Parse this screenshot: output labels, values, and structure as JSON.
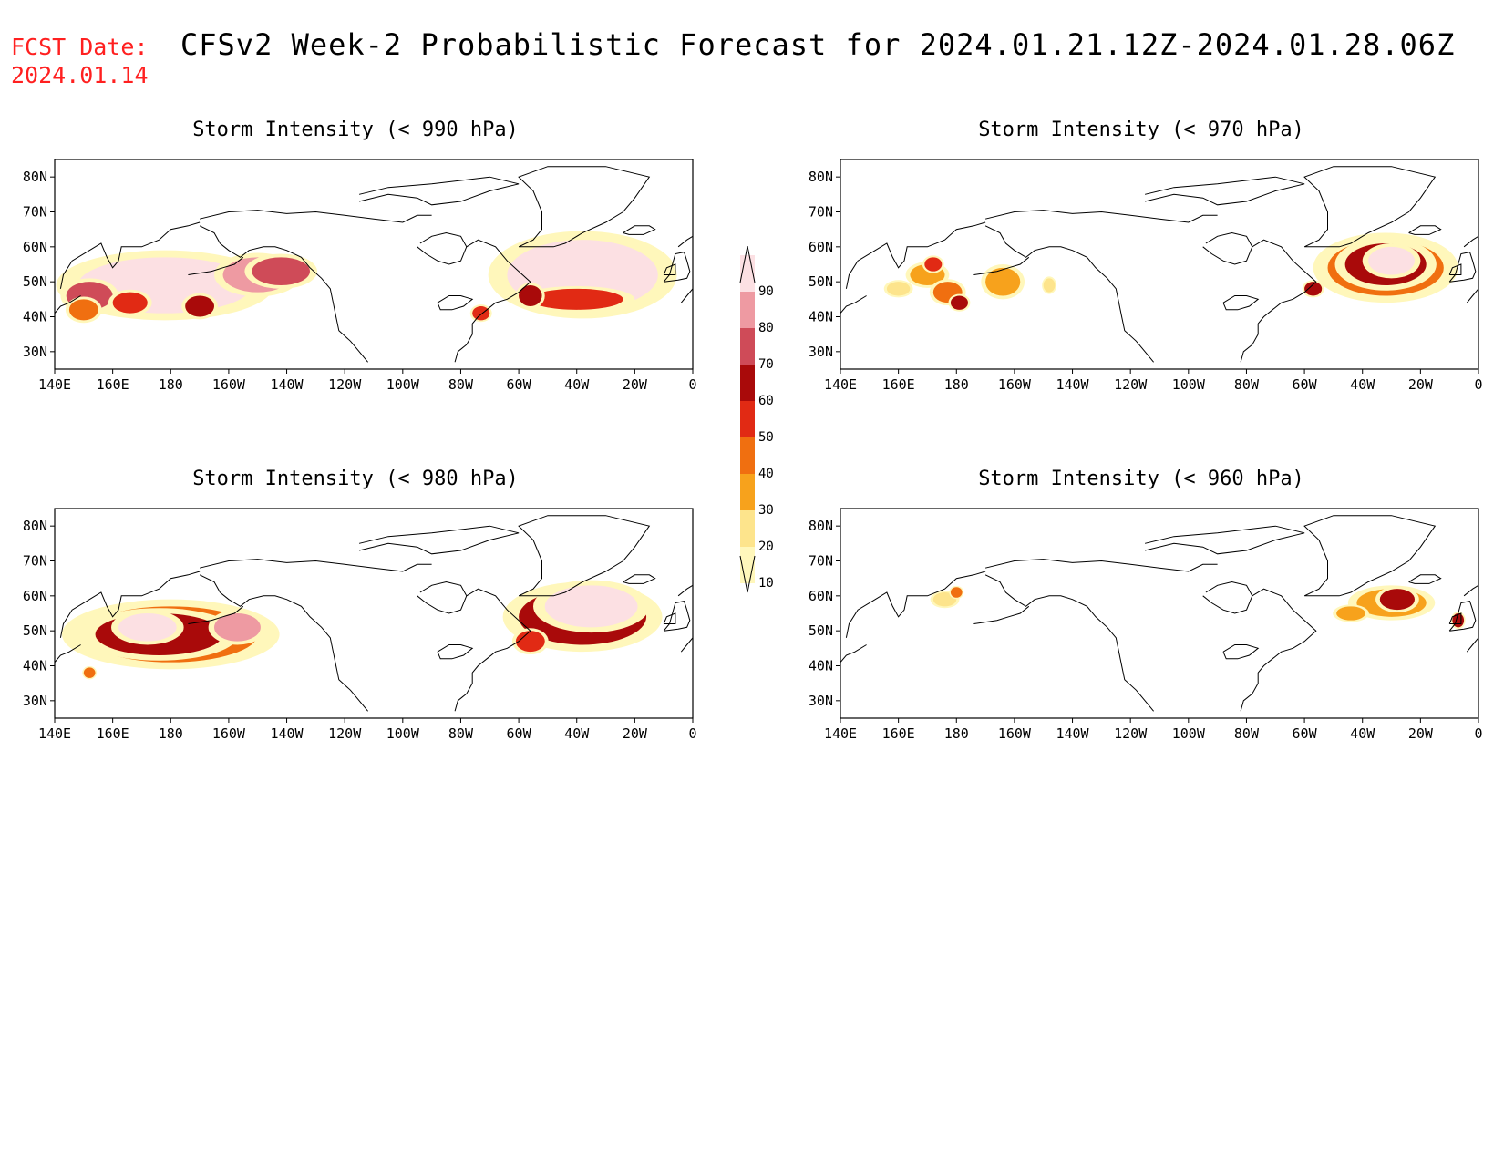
{
  "header": {
    "fcst_label": "FCST Date:",
    "fcst_date": "2024.01.14",
    "title": "CFSv2 Week-2 Probabilistic Forecast for 2024.01.21.12Z-2024.01.28.06Z"
  },
  "axes": {
    "lat_labels": [
      "80N",
      "70N",
      "60N",
      "50N",
      "40N",
      "30N"
    ],
    "lat_values": [
      80,
      70,
      60,
      50,
      40,
      30
    ],
    "lon_labels": [
      "140E",
      "160E",
      "180",
      "160W",
      "140W",
      "120W",
      "100W",
      "80W",
      "60W",
      "40W",
      "20W",
      "0"
    ],
    "lon_values": [
      140,
      160,
      180,
      200,
      220,
      240,
      260,
      280,
      300,
      320,
      340,
      360
    ],
    "lat_range": [
      25,
      85
    ],
    "lon_range": [
      140,
      360
    ]
  },
  "colorbar": {
    "levels": [
      "10",
      "20",
      "30",
      "40",
      "50",
      "60",
      "70",
      "80",
      "90"
    ],
    "colors": [
      "#fff7bb",
      "#fde48c",
      "#f7a21c",
      "#f06f10",
      "#e12a14",
      "#a90a0a",
      "#cf4b58",
      "#ee9aa2",
      "#fce0e3"
    ]
  },
  "panels": [
    {
      "id": "p990",
      "title": "Storm Intensity (< 990 hPa)",
      "blobs": [
        {
          "lon": 178,
          "lat": 49,
          "rx": 30,
          "ry": 8,
          "level": 8
        },
        {
          "lon": 210,
          "lat": 52,
          "rx": 12,
          "ry": 5,
          "level": 7
        },
        {
          "lon": 152,
          "lat": 46,
          "rx": 8,
          "ry": 4,
          "level": 6
        },
        {
          "lon": 166,
          "lat": 44,
          "rx": 6,
          "ry": 3,
          "level": 4
        },
        {
          "lon": 190,
          "lat": 43,
          "rx": 5,
          "ry": 3,
          "level": 5
        },
        {
          "lon": 218,
          "lat": 53,
          "rx": 10,
          "ry": 4,
          "level": 6
        },
        {
          "lon": 150,
          "lat": 42,
          "rx": 5,
          "ry": 3,
          "level": 3
        },
        {
          "lon": 322,
          "lat": 52,
          "rx": 26,
          "ry": 10,
          "level": 8
        },
        {
          "lon": 320,
          "lat": 45,
          "rx": 16,
          "ry": 3,
          "level": 4
        },
        {
          "lon": 304,
          "lat": 46,
          "rx": 4,
          "ry": 3,
          "level": 5
        },
        {
          "lon": 287,
          "lat": 41,
          "rx": 3,
          "ry": 2,
          "level": 4
        }
      ]
    },
    {
      "id": "p970",
      "title": "Storm Intensity (< 970 hPa)",
      "blobs": [
        {
          "lon": 170,
          "lat": 52,
          "rx": 6,
          "ry": 3,
          "level": 2
        },
        {
          "lon": 172,
          "lat": 55,
          "rx": 3,
          "ry": 2,
          "level": 4
        },
        {
          "lon": 177,
          "lat": 47,
          "rx": 5,
          "ry": 3,
          "level": 3
        },
        {
          "lon": 181,
          "lat": 44,
          "rx": 3,
          "ry": 2,
          "level": 5
        },
        {
          "lon": 160,
          "lat": 48,
          "rx": 4,
          "ry": 2,
          "level": 1
        },
        {
          "lon": 196,
          "lat": 50,
          "rx": 6,
          "ry": 4,
          "level": 2
        },
        {
          "lon": 212,
          "lat": 49,
          "rx": 2,
          "ry": 2,
          "level": 1
        },
        {
          "lon": 328,
          "lat": 54,
          "rx": 20,
          "ry": 8,
          "level": 3
        },
        {
          "lon": 328,
          "lat": 55,
          "rx": 14,
          "ry": 6,
          "level": 5
        },
        {
          "lon": 330,
          "lat": 56,
          "rx": 8,
          "ry": 4,
          "level": 8
        },
        {
          "lon": 303,
          "lat": 48,
          "rx": 3,
          "ry": 2,
          "level": 5
        }
      ]
    },
    {
      "id": "p980",
      "title": "Storm Intensity (< 980 hPa)",
      "blobs": [
        {
          "lon": 180,
          "lat": 49,
          "rx": 30,
          "ry": 8,
          "level": 3
        },
        {
          "lon": 176,
          "lat": 49,
          "rx": 22,
          "ry": 6,
          "level": 5
        },
        {
          "lon": 172,
          "lat": 51,
          "rx": 10,
          "ry": 4,
          "level": 8
        },
        {
          "lon": 203,
          "lat": 51,
          "rx": 8,
          "ry": 4,
          "level": 7
        },
        {
          "lon": 152,
          "lat": 38,
          "rx": 2,
          "ry": 1.5,
          "level": 3
        },
        {
          "lon": 322,
          "lat": 54,
          "rx": 22,
          "ry": 8,
          "level": 5
        },
        {
          "lon": 325,
          "lat": 57,
          "rx": 16,
          "ry": 6,
          "level": 8
        },
        {
          "lon": 304,
          "lat": 47,
          "rx": 5,
          "ry": 3,
          "level": 4
        }
      ]
    },
    {
      "id": "p960",
      "title": "Storm Intensity (< 960 hPa)",
      "blobs": [
        {
          "lon": 176,
          "lat": 59,
          "rx": 4,
          "ry": 2,
          "level": 1
        },
        {
          "lon": 180,
          "lat": 61,
          "rx": 2,
          "ry": 1.5,
          "level": 3
        },
        {
          "lon": 330,
          "lat": 58,
          "rx": 12,
          "ry": 4,
          "level": 2
        },
        {
          "lon": 332,
          "lat": 59,
          "rx": 6,
          "ry": 3,
          "level": 5
        },
        {
          "lon": 316,
          "lat": 55,
          "rx": 5,
          "ry": 2,
          "level": 2
        },
        {
          "lon": 353,
          "lat": 53,
          "rx": 2,
          "ry": 2,
          "level": 5
        }
      ]
    }
  ]
}
